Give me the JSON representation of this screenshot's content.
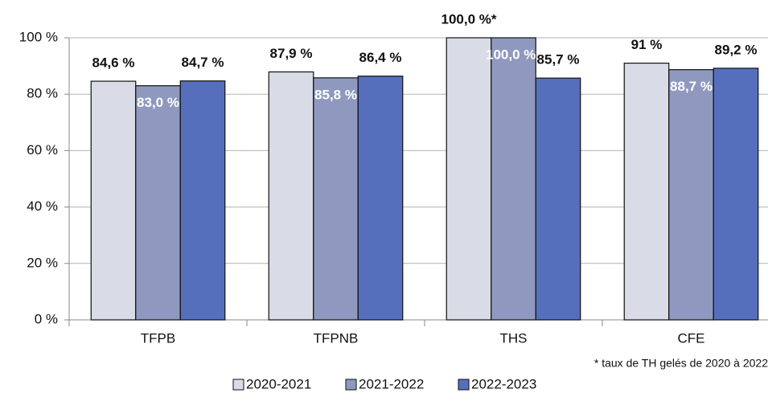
{
  "chart_data": {
    "type": "bar",
    "categories": [
      "TFPB",
      "TFPNB",
      "THS",
      "CFE"
    ],
    "series": [
      {
        "name": "2020-2021",
        "color": "#d9dce7",
        "values": [
          84.6,
          87.9,
          100.0,
          91
        ],
        "value_labels": [
          "84,6 %",
          "87,9 %",
          "100,0 %*",
          "91 %"
        ]
      },
      {
        "name": "2021-2022",
        "color": "#8f99bf",
        "values": [
          83.0,
          85.8,
          100.0,
          88.7
        ],
        "value_labels": [
          "83,0 %",
          "85,8 %",
          "100,0 %*",
          "88,7 %"
        ]
      },
      {
        "name": "2022-2023",
        "color": "#566fbd",
        "values": [
          84.7,
          86.4,
          85.7,
          89.2
        ],
        "value_labels": [
          "84,7 %",
          "86,4 %",
          "85,7 %",
          "89,2 %"
        ]
      }
    ],
    "ylim": [
      0,
      100
    ],
    "yticks": [
      {
        "value": 0,
        "label": "0 %"
      },
      {
        "value": 20,
        "label": "20 %"
      },
      {
        "value": 40,
        "label": "40 %"
      },
      {
        "value": 60,
        "label": "60 %"
      },
      {
        "value": 80,
        "label": "80 %"
      },
      {
        "value": 100,
        "label": "100 %"
      }
    ],
    "grid": true,
    "note": "* taux de TH gelés de 2020 à 2022"
  }
}
